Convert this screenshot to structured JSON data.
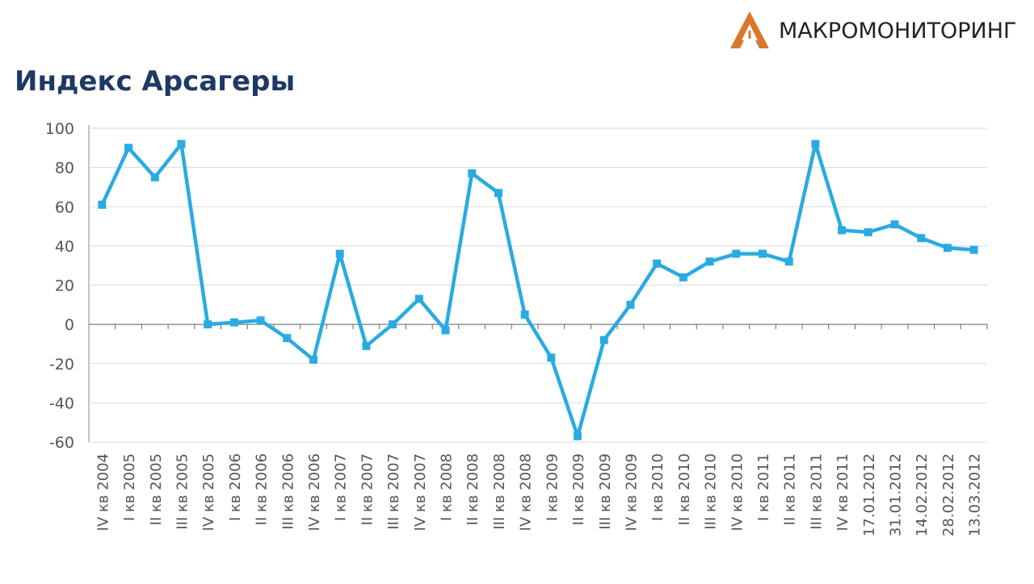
{
  "brand": "МАКРОМОНИТОРИНГ",
  "chart_data": {
    "type": "line",
    "title": "Индекс Арсагеры",
    "categories": [
      "IV кв 2004",
      "I кв 2005",
      "II кв 2005",
      "III кв 2005",
      "IV кв 2005",
      "I кв 2006",
      "II кв 2006",
      "III кв 2006",
      "IV кв 2006",
      "I кв 2007",
      "II кв 2007",
      "III кв 2007",
      "IV кв 2007",
      "I кв 2008",
      "II кв 2008",
      "III кв 2008",
      "IV кв 2008",
      "I кв 2009",
      "II кв 2009",
      "III кв 2009",
      "IV кв 2009",
      "I кв 2010",
      "II кв 2010",
      "III кв 2010",
      "IV кв 2010",
      "I кв 2011",
      "II кв 2011",
      "III кв 2011",
      "IV кв 2011",
      "17.01.2012",
      "31.01.2012",
      "14.02.2012",
      "28.02.2012",
      "13.03.2012"
    ],
    "series": [
      {
        "color": "#29abe2",
        "values": [
          61,
          90,
          75,
          92,
          0,
          1,
          2,
          -7,
          -18,
          36,
          -11,
          0,
          13,
          -3,
          77,
          67,
          5,
          -17,
          -57,
          -8,
          10,
          31,
          24,
          32,
          36,
          36,
          32,
          92,
          48,
          47,
          51,
          44,
          39,
          38
        ]
      }
    ],
    "ylim": [
      -60,
      100
    ],
    "yticks": [
      -60,
      -40,
      -20,
      0,
      20,
      40,
      60,
      80,
      100
    ],
    "grid": true
  }
}
